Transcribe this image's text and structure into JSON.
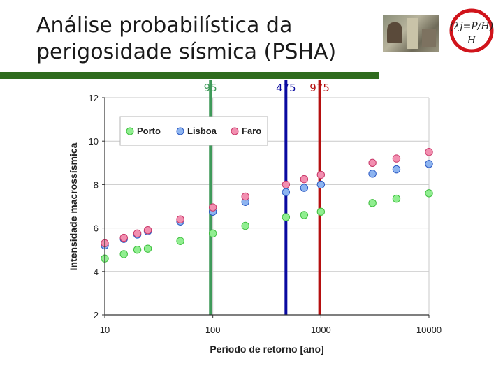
{
  "slide": {
    "title_line1": "Análise probabilística da",
    "title_line2": "perigosidade sísmica (PSHA)",
    "logo_text_top": "(λj=P/H)",
    "logo_text_bottom": "H",
    "colors": {
      "rule": "#2f6b1e",
      "logo_ring": "#d0141b"
    }
  },
  "chart_data": {
    "type": "scatter",
    "title": "",
    "xlabel": "Período de retorno [ano]",
    "ylabel": "Intensidade macrossísmica",
    "xscale": "log",
    "xlim": [
      10,
      10000
    ],
    "ylim": [
      2,
      12
    ],
    "xticks": [
      "10",
      "100",
      "1000",
      "10000"
    ],
    "yticks": [
      "2",
      "4",
      "6",
      "8",
      "10",
      "12"
    ],
    "grid": true,
    "legend_position": "top-left",
    "series": [
      {
        "name": "Porto",
        "color": "#90ee90",
        "x": [
          10,
          15,
          20,
          25,
          50,
          100,
          200,
          475,
          700,
          1000,
          3000,
          5000,
          10000
        ],
        "y": [
          4.6,
          4.8,
          5.0,
          5.05,
          5.4,
          5.75,
          6.1,
          6.5,
          6.6,
          6.75,
          7.15,
          7.35,
          7.6
        ]
      },
      {
        "name": "Lisboa",
        "color": "#8db4f0",
        "x": [
          10,
          15,
          20,
          25,
          50,
          100,
          200,
          475,
          700,
          1000,
          3000,
          5000,
          10000
        ],
        "y": [
          5.2,
          5.5,
          5.7,
          5.85,
          6.3,
          6.75,
          7.2,
          7.65,
          7.85,
          8.0,
          8.5,
          8.7,
          8.95
        ]
      },
      {
        "name": "Faro",
        "color": "#f28fb0",
        "x": [
          10,
          15,
          20,
          25,
          50,
          100,
          200,
          475,
          700,
          1000,
          3000,
          5000,
          10000
        ],
        "y": [
          5.3,
          5.55,
          5.75,
          5.9,
          6.4,
          6.95,
          7.45,
          8.0,
          8.25,
          8.45,
          9.0,
          9.2,
          9.5
        ]
      }
    ],
    "vlines": [
      {
        "x": 95,
        "label": "95",
        "color": "#3f9a5a"
      },
      {
        "x": 475,
        "label": "475",
        "color": "#0a0aa0"
      },
      {
        "x": 975,
        "label": "975",
        "color": "#b50f0f"
      }
    ]
  }
}
